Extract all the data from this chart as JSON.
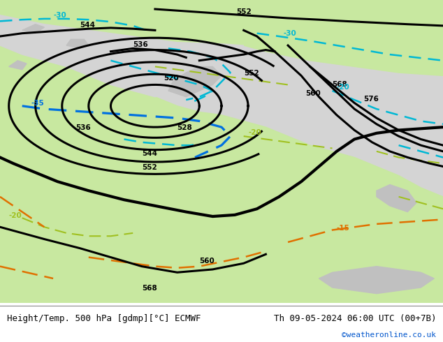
{
  "title_left": "Height/Temp. 500 hPa [gdmp][°C] ECMWF",
  "title_right": "Th 09-05-2024 06:00 UTC (00+7B)",
  "credit": "©weatheronline.co.uk",
  "map_bg": "#d4d4d4",
  "land_green": "#c8e8a0",
  "lake_gray": "#c0c0c0",
  "fig_width": 6.34,
  "fig_height": 4.9,
  "dpi": 100,
  "black_lw": 2.2,
  "thick_black_lw": 3.0,
  "cyan_lw": 1.8,
  "green_dash_lw": 1.5,
  "orange_lw": 1.8,
  "label_fs": 7.5,
  "footer_fs": 9
}
